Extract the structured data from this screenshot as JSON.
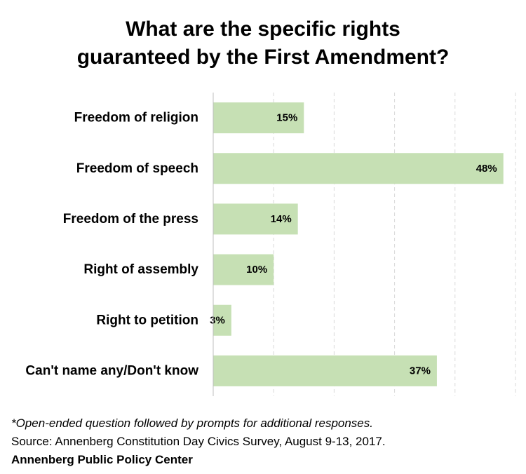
{
  "title_lines": [
    "What are the specific rights",
    "guaranteed by the First Amendment?"
  ],
  "chart_data": {
    "type": "bar",
    "orientation": "horizontal",
    "categories": [
      "Freedom of religion",
      "Freedom of speech",
      "Freedom of the press",
      "Right of assembly",
      "Right to petition",
      "Can't name any/Don't know"
    ],
    "values": [
      15,
      48,
      14,
      10,
      3,
      37
    ],
    "data_labels": [
      "15%",
      "48%",
      "14%",
      "10%",
      "3%",
      "37%"
    ],
    "value_unit": "%",
    "xlim": [
      0,
      50
    ],
    "grid": "vertical dashed gridlines every 10",
    "legend": "none",
    "bar_color": "#c6e0b4",
    "grid_color": "#d9d9d9",
    "axis_color": "#bfbfbf"
  },
  "notes": {
    "footnote": "*Open-ended question followed by prompts for additional responses.",
    "source": "Source: Annenberg Constitution Day Civics Survey, August 9-13, 2017.",
    "organization": "Annenberg Public Policy Center"
  }
}
